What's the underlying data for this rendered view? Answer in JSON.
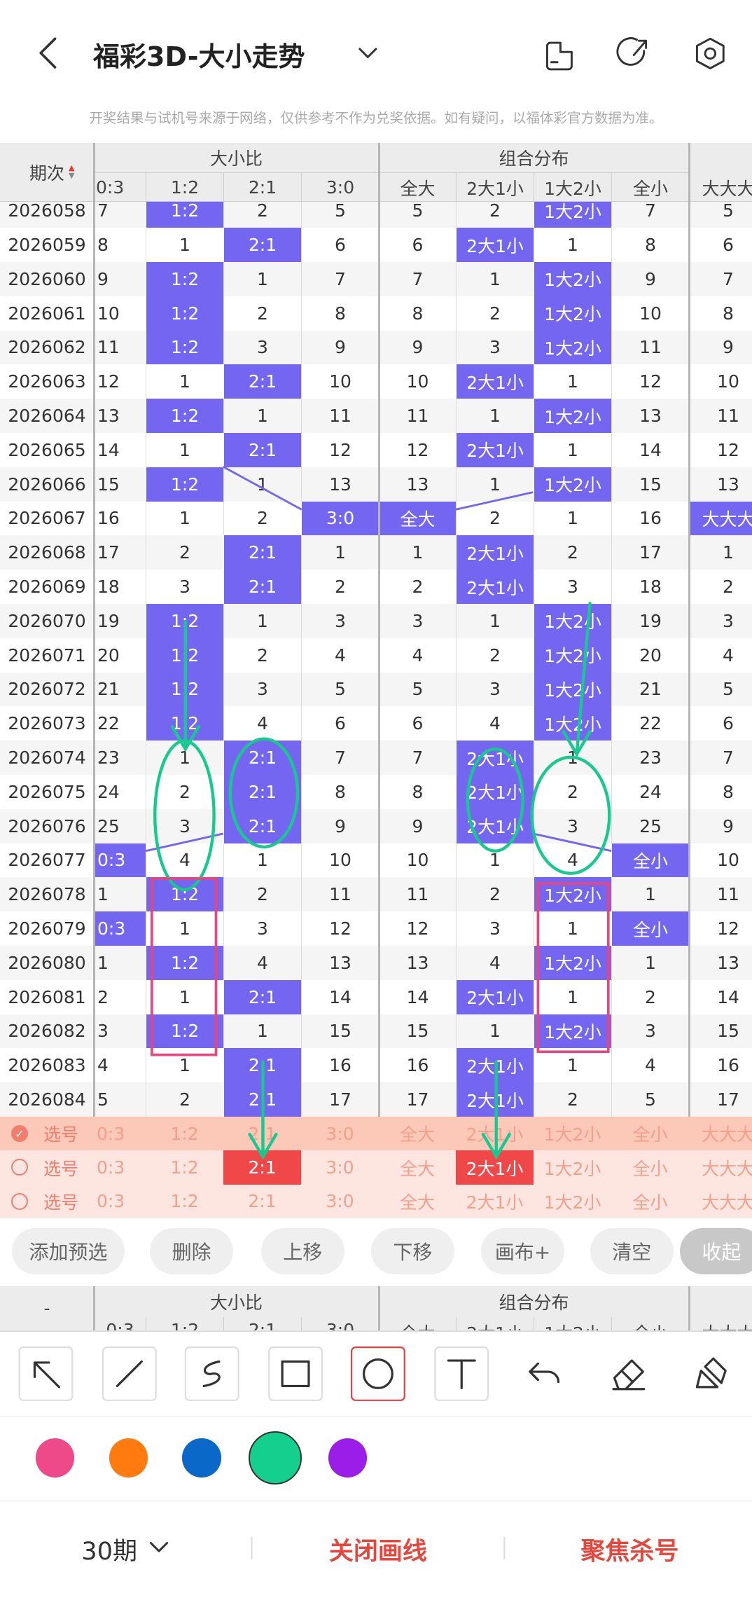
{
  "header": {
    "title": "福彩3D-大小走势"
  },
  "notice": "开奖结果与试机号来源于网络，仅供参考不作为兑奖依据。如有疑问，以福体彩官方数据为准。",
  "table": {
    "period_header": "期次",
    "groups": [
      "大小比",
      "组合分布"
    ],
    "columns": [
      "0:3",
      "1:2",
      "2:1",
      "3:0",
      "全大",
      "2大1小",
      "1大2小",
      "全小",
      "大大大"
    ],
    "rows": [
      {
        "period": "2026058",
        "cells": [
          7,
          "1:2",
          2,
          5,
          5,
          2,
          "1大2小",
          7,
          5
        ]
      },
      {
        "period": "2026059",
        "cells": [
          8,
          1,
          "2:1",
          6,
          6,
          "2大1小",
          1,
          8,
          6
        ]
      },
      {
        "period": "2026060",
        "cells": [
          9,
          "1:2",
          1,
          7,
          7,
          1,
          "1大2小",
          9,
          7
        ]
      },
      {
        "period": "2026061",
        "cells": [
          10,
          "1:2",
          2,
          8,
          8,
          2,
          "1大2小",
          10,
          8
        ]
      },
      {
        "period": "2026062",
        "cells": [
          11,
          "1:2",
          3,
          9,
          9,
          3,
          "1大2小",
          11,
          9
        ]
      },
      {
        "period": "2026063",
        "cells": [
          12,
          1,
          "2:1",
          10,
          10,
          "2大1小",
          1,
          12,
          10
        ]
      },
      {
        "period": "2026064",
        "cells": [
          13,
          "1:2",
          1,
          11,
          11,
          1,
          "1大2小",
          13,
          11
        ]
      },
      {
        "period": "2026065",
        "cells": [
          14,
          1,
          "2:1",
          12,
          12,
          "2大1小",
          1,
          14,
          12
        ]
      },
      {
        "period": "2026066",
        "cells": [
          15,
          "1:2",
          1,
          13,
          13,
          1,
          "1大2小",
          15,
          13
        ]
      },
      {
        "period": "2026067",
        "cells": [
          16,
          1,
          2,
          "3:0",
          "全大",
          2,
          1,
          16,
          "大大大"
        ]
      },
      {
        "period": "2026068",
        "cells": [
          17,
          2,
          "2:1",
          1,
          1,
          "2大1小",
          2,
          17,
          1
        ]
      },
      {
        "period": "2026069",
        "cells": [
          18,
          3,
          "2:1",
          2,
          2,
          "2大1小",
          3,
          18,
          2
        ]
      },
      {
        "period": "2026070",
        "cells": [
          19,
          "1:2",
          1,
          3,
          3,
          1,
          "1大2小",
          19,
          3
        ]
      },
      {
        "period": "2026071",
        "cells": [
          20,
          "1:2",
          2,
          4,
          4,
          2,
          "1大2小",
          20,
          4
        ]
      },
      {
        "period": "2026072",
        "cells": [
          21,
          "1:2",
          3,
          5,
          5,
          3,
          "1大2小",
          21,
          5
        ]
      },
      {
        "period": "2026073",
        "cells": [
          22,
          "1:2",
          4,
          6,
          6,
          4,
          "1大2小",
          22,
          6
        ]
      },
      {
        "period": "2026074",
        "cells": [
          23,
          1,
          "2:1",
          7,
          7,
          "2大1小",
          1,
          23,
          7
        ]
      },
      {
        "period": "2026075",
        "cells": [
          24,
          2,
          "2:1",
          8,
          8,
          "2大1小",
          2,
          24,
          8
        ]
      },
      {
        "period": "2026076",
        "cells": [
          25,
          3,
          "2:1",
          9,
          9,
          "2大1小",
          3,
          25,
          9
        ]
      },
      {
        "period": "2026077",
        "cells": [
          "0:3",
          4,
          1,
          10,
          10,
          1,
          4,
          "全小",
          10
        ]
      },
      {
        "period": "2026078",
        "cells": [
          1,
          "1:2",
          2,
          11,
          11,
          2,
          "1大2小",
          1,
          11
        ]
      },
      {
        "period": "2026079",
        "cells": [
          "0:3",
          1,
          3,
          12,
          12,
          3,
          1,
          "全小",
          12
        ]
      },
      {
        "period": "2026080",
        "cells": [
          1,
          "1:2",
          4,
          13,
          13,
          4,
          "1大2小",
          1,
          13
        ]
      },
      {
        "period": "2026081",
        "cells": [
          2,
          1,
          "2:1",
          14,
          14,
          "2大1小",
          1,
          2,
          14
        ]
      },
      {
        "period": "2026082",
        "cells": [
          3,
          "1:2",
          1,
          15,
          15,
          1,
          "1大2小",
          3,
          15
        ]
      },
      {
        "period": "2026083",
        "cells": [
          4,
          1,
          "2:1",
          16,
          16,
          "2大1小",
          1,
          4,
          16
        ]
      },
      {
        "period": "2026084",
        "cells": [
          5,
          2,
          "2:1",
          17,
          17,
          "2大1小",
          2,
          5,
          17
        ]
      }
    ],
    "picks": [
      {
        "label": "选号",
        "checked": true,
        "cells": [
          "0:3",
          "1:2",
          "2:1",
          "3:0",
          "全大",
          "2大1小",
          "1大2小",
          "全小",
          "大大大"
        ],
        "selected": [
          false,
          false,
          false,
          false,
          false,
          false,
          false,
          false,
          false
        ]
      },
      {
        "label": "选号",
        "checked": false,
        "cells": [
          "0:3",
          "1:2",
          "2:1",
          "3:0",
          "全大",
          "2大1小",
          "1大2小",
          "全小",
          "大大大"
        ],
        "selected": [
          false,
          false,
          true,
          false,
          false,
          true,
          false,
          false,
          false
        ]
      },
      {
        "label": "选号",
        "checked": false,
        "cells": [
          "0:3",
          "1:2",
          "2:1",
          "3:0",
          "全大",
          "2大1小",
          "1大2小",
          "全小",
          "大大大"
        ],
        "selected": [
          false,
          false,
          false,
          false,
          false,
          false,
          false,
          false,
          false
        ]
      }
    ]
  },
  "actions": [
    "添加预选",
    "删除",
    "上移",
    "下移",
    "画布+",
    "清空",
    "收起"
  ],
  "mini_header": {
    "placeholder": "-"
  },
  "drawing": {
    "colors": [
      "#ee4a8a",
      "#ff7a0f",
      "#0a68c8",
      "#15cf8f",
      "#9b1de8"
    ],
    "active_color": "#15cf8f"
  },
  "footer": {
    "period_select": "30期",
    "close_lines": "关闭画线",
    "focus_kill": "聚焦杀号"
  }
}
